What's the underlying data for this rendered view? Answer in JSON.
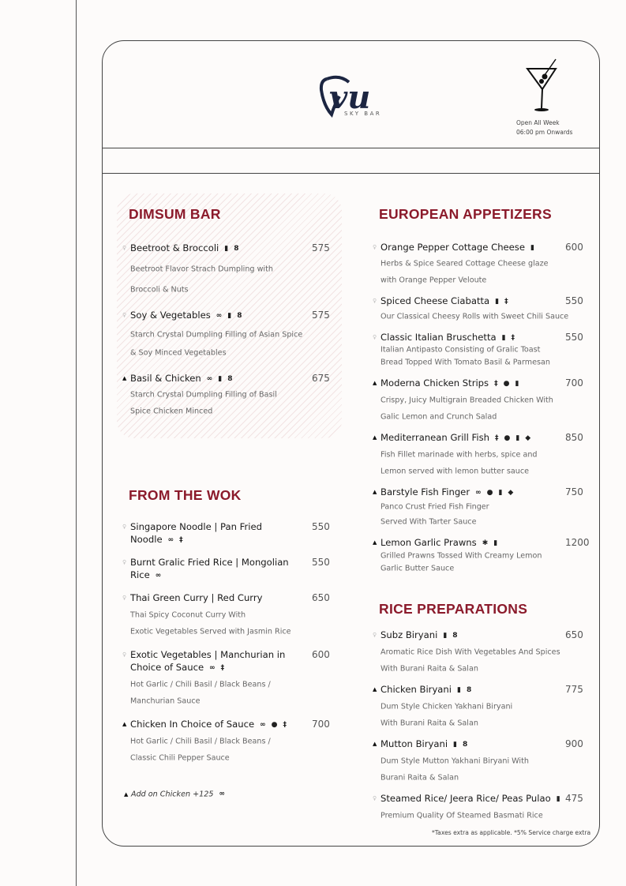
{
  "brand": {
    "logo_text": "vu",
    "subtitle": "SKY BAR",
    "brand_color": "#1c2541",
    "accent_color": "#8b1a2b"
  },
  "hours": {
    "line1": "Open All Week",
    "line2": "06:00 pm Onwards"
  },
  "icons": {
    "veg": "veg-marker-icon",
    "nonveg": "nonveg-triangle-icon",
    "chain": "chain-link-icon",
    "bottle": "bottle-icon",
    "peanut": "peanut-icon",
    "wheat": "wheat-icon",
    "egg": "egg-icon",
    "fish": "fish-icon",
    "crab": "crab-icon"
  },
  "sections": [
    {
      "title": "DIMSUM BAR",
      "items": [
        {
          "name": [
            "Beetroot & Broccoli"
          ],
          "price": "575",
          "marker": "veg",
          "icons": [
            "bottle",
            "peanut"
          ],
          "desc": [
            "Beetroot Flavor Strach Dumpling with",
            "Broccoli & Nuts"
          ]
        },
        {
          "name": [
            "Soy & Vegetables"
          ],
          "price": "575",
          "marker": "veg",
          "icons": [
            "chain",
            "bottle",
            "peanut"
          ],
          "desc": [
            "Starch Crystal Dumpling Filling of Asian Spice",
            "& Soy Minced Vegetables"
          ]
        },
        {
          "name": [
            "Basil & Chicken"
          ],
          "price": "675",
          "marker": "nonveg",
          "icons": [
            "chain",
            "bottle",
            "peanut"
          ],
          "desc": [
            "Starch Crystal Dumpling Filling of Basil",
            "Spice Chicken Minced"
          ]
        }
      ]
    },
    {
      "title": "FROM THE WOK",
      "items": [
        {
          "name": [
            "Singapore Noodle | Pan Fried",
            "Noodle"
          ],
          "price": "550",
          "marker": "veg",
          "icons": [
            "chain",
            "wheat"
          ],
          "desc": []
        },
        {
          "name": [
            "Burnt Gralic Fried Rice | Mongolian",
            "Rice"
          ],
          "price": "550",
          "marker": "veg",
          "icons": [
            "chain"
          ],
          "desc": []
        },
        {
          "name": [
            "Thai Green Curry | Red Curry"
          ],
          "price": "650",
          "marker": "veg",
          "icons": [],
          "desc": [
            "Thai Spicy Coconut Curry With",
            "Exotic Vegetables Served with Jasmin Rice"
          ]
        },
        {
          "name": [
            "Exotic Vegetables | Manchurian in",
            "Choice of Sauce"
          ],
          "price": "600",
          "marker": "veg",
          "icons": [
            "chain",
            "wheat"
          ],
          "desc": [
            "Hot Garlic / Chili Basil / Black Beans /",
            "Manchurian Sauce"
          ]
        },
        {
          "name": [
            "Chicken In Choice of Sauce"
          ],
          "price": "700",
          "marker": "nonveg",
          "icons": [
            "chain",
            "egg",
            "wheat"
          ],
          "desc": [
            "Hot Garlic / Chili Basil / Black Beans /",
            "Classic Chili Pepper Sauce"
          ]
        }
      ],
      "addon": "Add on Chicken  +125"
    },
    {
      "title": "EUROPEAN APPETIZERS",
      "items": [
        {
          "name": [
            "Orange Pepper Cottage Cheese"
          ],
          "price": "600",
          "marker": "veg",
          "icons": [
            "bottle"
          ],
          "desc": [
            "Herbs & Spice Seared Cottage Cheese glaze",
            "with Orange Pepper Veloute"
          ]
        },
        {
          "name": [
            "Spiced Cheese Ciabatta"
          ],
          "price": "550",
          "marker": "veg",
          "icons": [
            "bottle",
            "wheat"
          ],
          "desc": [
            "Our Classical Cheesy Rolls with Sweet Chili Sauce"
          ]
        },
        {
          "name": [
            "Classic Italian Bruschetta"
          ],
          "price": "550",
          "marker": "veg",
          "icons": [
            "bottle",
            "wheat"
          ],
          "desc": [
            "Italian Antipasto Consisting of Gralic Toast",
            "Bread Topped With Tomato Basil & Parmesan"
          ]
        },
        {
          "name": [
            "Moderna Chicken Strips"
          ],
          "price": "700",
          "marker": "nonveg",
          "icons": [
            "wheat",
            "egg",
            "bottle"
          ],
          "desc": [
            "Crispy, Juicy Multigrain Breaded Chicken With",
            "Galic Lemon and Crunch Salad"
          ]
        },
        {
          "name": [
            "Mediterranean Grill Fish"
          ],
          "price": "850",
          "marker": "nonveg",
          "icons": [
            "wheat",
            "egg",
            "bottle",
            "fish"
          ],
          "desc": [
            "Fish Fillet marinade with herbs, spice and",
            "Lemon served with lemon butter sauce"
          ]
        },
        {
          "name": [
            "Barstyle Fish Finger"
          ],
          "price": "750",
          "marker": "nonveg",
          "icons": [
            "chain",
            "egg",
            "bottle",
            "fish"
          ],
          "desc": [
            "Panco Crust Fried Fish Finger",
            "Served With Tarter Sauce"
          ]
        },
        {
          "name": [
            "Lemon Garlic Prawns"
          ],
          "price": "1200",
          "marker": "nonveg",
          "icons": [
            "crab",
            "bottle"
          ],
          "desc": [
            "Grilled Prawns Tossed With Creamy Lemon",
            "Garlic Butter Sauce"
          ]
        }
      ]
    },
    {
      "title": "RICE PREPARATIONS",
      "items": [
        {
          "name": [
            "Subz Biryani"
          ],
          "price": "650",
          "marker": "veg",
          "icons": [
            "bottle",
            "peanut"
          ],
          "desc": [
            "Aromatic Rice Dish With Vegetables And Spices",
            "With Burani Raita & Salan"
          ]
        },
        {
          "name": [
            "Chicken Biryani"
          ],
          "price": "775",
          "marker": "nonveg",
          "icons": [
            "bottle",
            "peanut"
          ],
          "desc": [
            "Dum Style Chicken Yakhani Biryani",
            "With Burani Raita & Salan"
          ]
        },
        {
          "name": [
            "Mutton Biryani"
          ],
          "price": "900",
          "marker": "nonveg",
          "icons": [
            "bottle",
            "peanut"
          ],
          "desc": [
            "Dum Style Mutton Yakhani Biryani With",
            "Burani Raita & Salan"
          ]
        },
        {
          "name": [
            "Steamed Rice/ Jeera Rice/ Peas Pulao"
          ],
          "price": "475",
          "marker": "veg",
          "icons": [
            "bottle"
          ],
          "desc": [
            "Premium Quality Of Steamed Basmati Rice"
          ]
        }
      ]
    }
  ],
  "footnote": "*Taxes extra as applicable. *5% Service charge extra"
}
